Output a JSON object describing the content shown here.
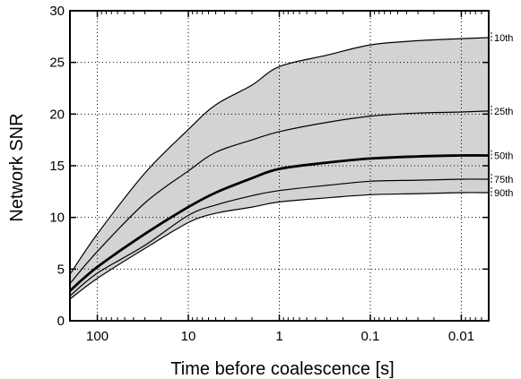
{
  "chart_data": {
    "type": "line",
    "title": "",
    "xlabel": "Time before coalescence [s]",
    "ylabel": "Network SNR",
    "x_scale": "log",
    "x_reversed": true,
    "xlim": [
      200,
      0.005
    ],
    "ylim": [
      0,
      30
    ],
    "xticks": [
      100,
      10,
      1,
      0.1,
      0.01
    ],
    "xtick_labels": [
      "100",
      "10",
      "1",
      "0.1",
      "0.01"
    ],
    "yticks": [
      0,
      5,
      10,
      15,
      20,
      25,
      30
    ],
    "ytick_labels": [
      "0",
      "5",
      "10",
      "15",
      "20",
      "25",
      "30"
    ],
    "grid": true,
    "band": {
      "lower": "90th",
      "upper": "10th",
      "fill": "#d3d3d3"
    },
    "x": [
      200,
      100,
      30,
      10,
      5,
      2,
      1,
      0.3,
      0.1,
      0.03,
      0.01,
      0.005
    ],
    "series": [
      {
        "name": "10th",
        "values": [
          4.5,
          8.4,
          14.3,
          18.5,
          20.9,
          22.8,
          24.6,
          25.7,
          26.7,
          27.1,
          27.3,
          27.4
        ],
        "emphasis": false
      },
      {
        "name": "25th",
        "values": [
          3.6,
          6.7,
          11.4,
          14.5,
          16.3,
          17.5,
          18.3,
          19.2,
          19.8,
          20.1,
          20.2,
          20.3
        ],
        "emphasis": false
      },
      {
        "name": "50th",
        "values": [
          2.9,
          5.2,
          8.4,
          11.0,
          12.4,
          13.8,
          14.7,
          15.3,
          15.7,
          15.9,
          16.0,
          16.0
        ],
        "emphasis": true
      },
      {
        "name": "75th",
        "values": [
          2.4,
          4.6,
          7.3,
          10.2,
          11.2,
          12.1,
          12.6,
          13.1,
          13.5,
          13.6,
          13.7,
          13.7
        ],
        "emphasis": false
      },
      {
        "name": "90th",
        "values": [
          2.1,
          4.1,
          7.0,
          9.5,
          10.4,
          11.0,
          11.5,
          11.9,
          12.2,
          12.3,
          12.4,
          12.4
        ],
        "emphasis": false
      }
    ]
  }
}
